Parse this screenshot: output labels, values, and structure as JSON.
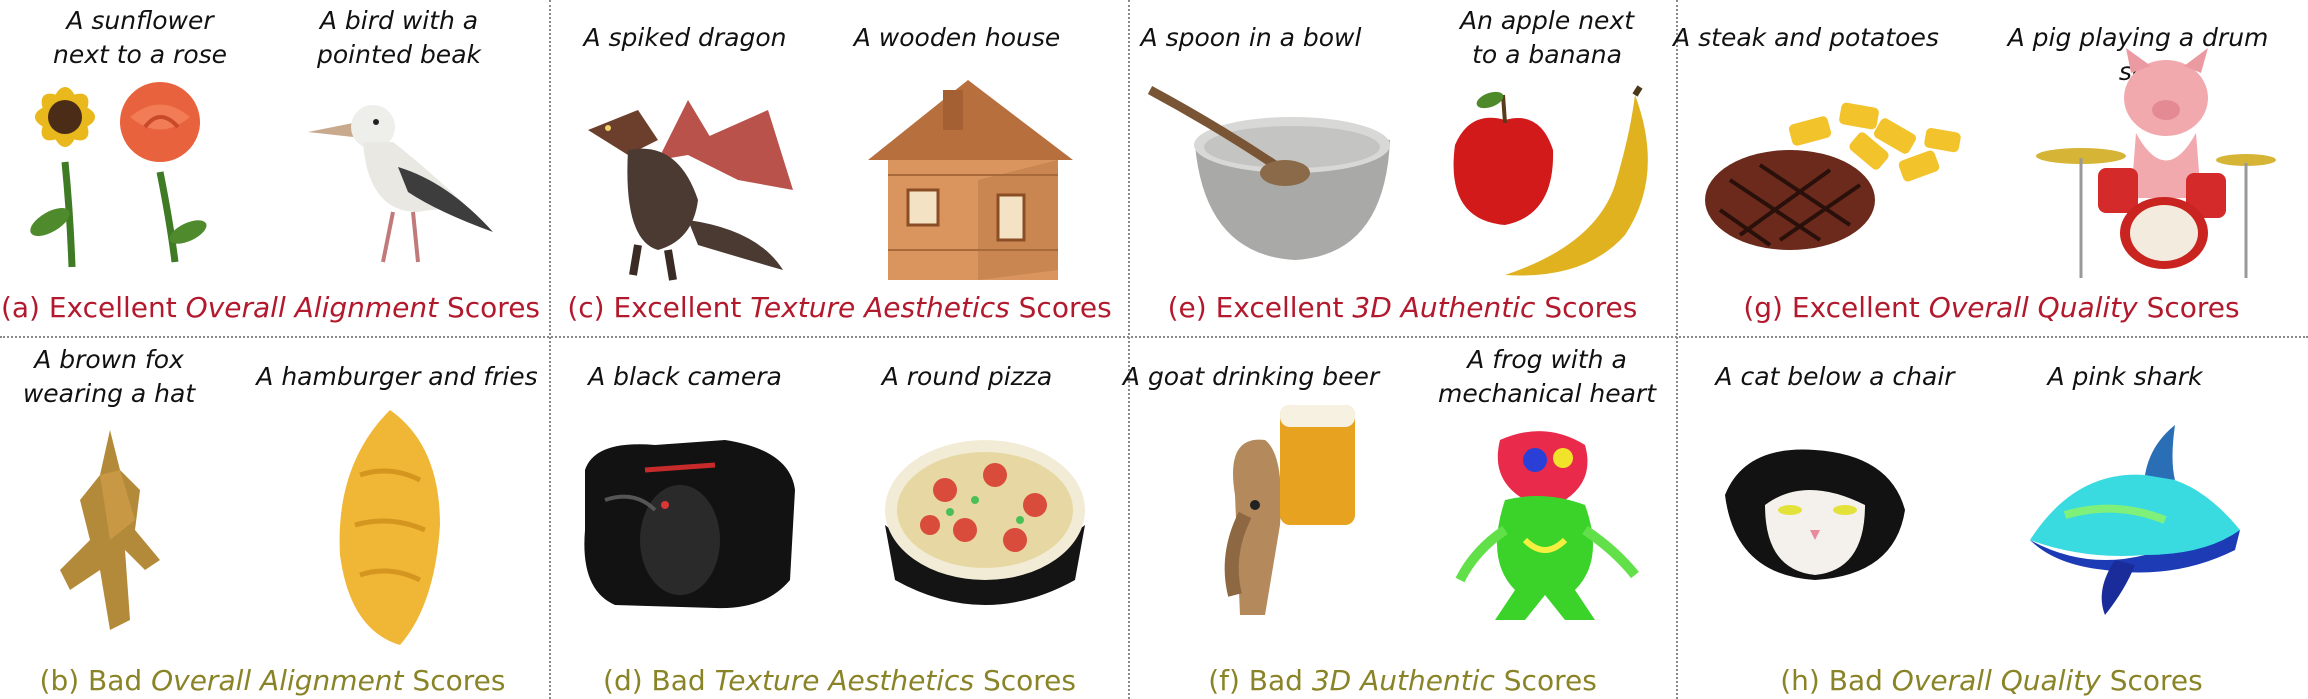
{
  "panels": [
    {
      "id": "a",
      "caption": {
        "prefix": "(a) Excellent ",
        "emph": "Overall Alignment",
        "suffix": " Scores"
      },
      "prompts": [
        "A sunflower\nnext to a rose",
        "A bird with a\npointed beak"
      ]
    },
    {
      "id": "b",
      "caption": {
        "prefix": "(b) Bad ",
        "emph": "Overall Alignment",
        "suffix": " Scores"
      },
      "prompts": [
        "A brown fox\nwearing a hat",
        "A hamburger and fries"
      ]
    },
    {
      "id": "c",
      "caption": {
        "prefix": "(c) Excellent ",
        "emph": "Texture Aesthetics",
        "suffix": " Scores"
      },
      "prompts": [
        "A spiked dragon",
        "A wooden house"
      ]
    },
    {
      "id": "d",
      "caption": {
        "prefix": "(d) Bad ",
        "emph": "Texture Aesthetics",
        "suffix": " Scores"
      },
      "prompts": [
        "A black camera",
        "A round pizza"
      ]
    },
    {
      "id": "e",
      "caption": {
        "prefix": "(e) Excellent ",
        "emph": "3D Authentic",
        "suffix": " Scores"
      },
      "prompts": [
        "A spoon in a bowl",
        "An apple next\nto a banana"
      ]
    },
    {
      "id": "f",
      "caption": {
        "prefix": "(f) Bad ",
        "emph": "3D Authentic",
        "suffix": " Scores"
      },
      "prompts": [
        "A goat drinking beer",
        "A frog with a\nmechanical heart"
      ]
    },
    {
      "id": "g",
      "caption": {
        "prefix": "(g) Excellent ",
        "emph": "Overall Quality",
        "suffix": " Scores"
      },
      "prompts": [
        "A steak and potatoes",
        "A pig playing a drum set"
      ]
    },
    {
      "id": "h",
      "caption": {
        "prefix": "(h) Bad ",
        "emph": "Overall Quality",
        "suffix": " Scores"
      },
      "prompts": [
        "A cat below a chair",
        "A pink shark"
      ]
    }
  ],
  "colors": {
    "excellent": "#b3192d",
    "bad": "#8a8428",
    "divider": "#8a8a8a"
  }
}
